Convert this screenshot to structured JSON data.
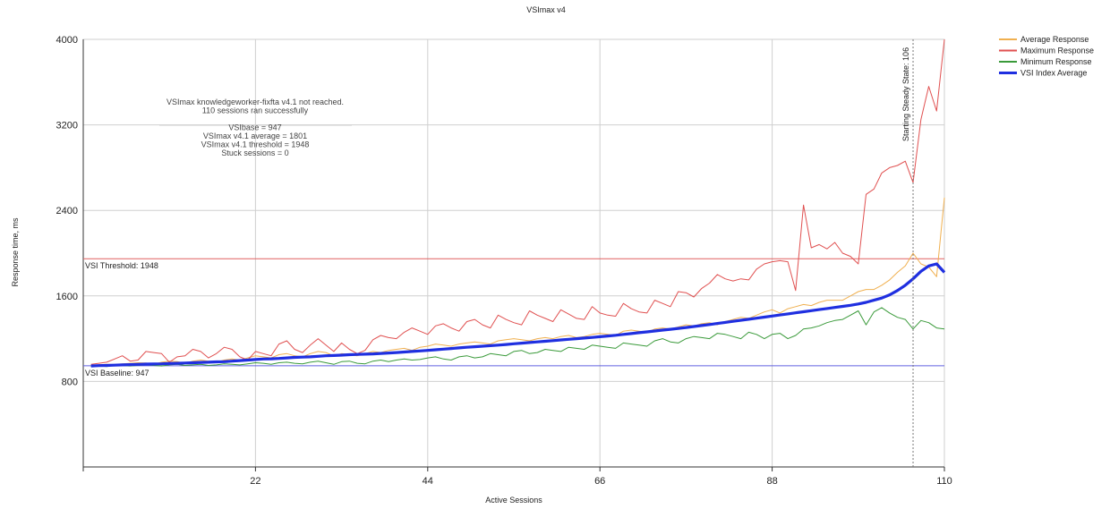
{
  "chart_data": {
    "type": "line",
    "title": "VSImax v4",
    "xlabel": "Active Sessions",
    "ylabel": "Response time, ms",
    "xlim": [
      0,
      110
    ],
    "ylim": [
      0,
      4000
    ],
    "x_ticks": [
      22,
      44,
      66,
      88,
      110
    ],
    "y_ticks": [
      800,
      1600,
      2400,
      3200,
      4000
    ],
    "grid": true,
    "legend_position": "top-right",
    "colors": {
      "average": "#f0b050",
      "maximum": "#e05050",
      "minimum": "#3a9a3a",
      "vsi_index": "#1f2fe0",
      "threshold_line": "#e06060",
      "baseline_line": "#6060e0",
      "grid": "#cfcfcf"
    },
    "x": [
      1,
      2,
      3,
      4,
      5,
      6,
      7,
      8,
      9,
      10,
      11,
      12,
      13,
      14,
      15,
      16,
      17,
      18,
      19,
      20,
      21,
      22,
      23,
      24,
      25,
      26,
      27,
      28,
      29,
      30,
      31,
      32,
      33,
      34,
      35,
      36,
      37,
      38,
      39,
      40,
      41,
      42,
      43,
      44,
      45,
      46,
      47,
      48,
      49,
      50,
      51,
      52,
      53,
      54,
      55,
      56,
      57,
      58,
      59,
      60,
      61,
      62,
      63,
      64,
      65,
      66,
      67,
      68,
      69,
      70,
      71,
      72,
      73,
      74,
      75,
      76,
      77,
      78,
      79,
      80,
      81,
      82,
      83,
      84,
      85,
      86,
      87,
      88,
      89,
      90,
      91,
      92,
      93,
      94,
      95,
      96,
      97,
      98,
      99,
      100,
      101,
      102,
      103,
      104,
      105,
      106,
      107,
      108,
      109,
      110
    ],
    "series": [
      {
        "name": "Average Response",
        "color": "#f0b050",
        "width": 1,
        "values": [
          950,
          955,
          960,
          958,
          965,
          970,
          975,
          972,
          960,
          980,
          990,
          985,
          970,
          990,
          1000,
          990,
          980,
          1000,
          1010,
          1000,
          1020,
          1040,
          1030,
          1020,
          1050,
          1060,
          1040,
          1030,
          1060,
          1080,
          1070,
          1040,
          1060,
          1050,
          1040,
          1060,
          1080,
          1070,
          1090,
          1100,
          1110,
          1090,
          1120,
          1130,
          1150,
          1140,
          1130,
          1150,
          1160,
          1170,
          1160,
          1150,
          1180,
          1190,
          1200,
          1190,
          1180,
          1200,
          1210,
          1200,
          1220,
          1230,
          1210,
          1220,
          1240,
          1250,
          1240,
          1230,
          1270,
          1280,
          1270,
          1260,
          1290,
          1300,
          1290,
          1310,
          1330,
          1320,
          1340,
          1350,
          1330,
          1360,
          1380,
          1400,
          1390,
          1420,
          1450,
          1470,
          1440,
          1480,
          1500,
          1520,
          1510,
          1540,
          1560,
          1560,
          1560,
          1600,
          1640,
          1660,
          1660,
          1700,
          1750,
          1820,
          1880,
          2000,
          1900,
          1870,
          1780,
          2520
        ]
      },
      {
        "name": "Maximum Response",
        "color": "#e05050",
        "width": 1,
        "values": [
          960,
          970,
          980,
          1010,
          1040,
          990,
          1000,
          1080,
          1070,
          1060,
          980,
          1030,
          1040,
          1100,
          1080,
          1020,
          1060,
          1120,
          1100,
          1030,
          1000,
          1080,
          1060,
          1040,
          1150,
          1180,
          1100,
          1070,
          1140,
          1200,
          1140,
          1080,
          1160,
          1100,
          1060,
          1090,
          1190,
          1230,
          1210,
          1200,
          1260,
          1300,
          1270,
          1240,
          1320,
          1340,
          1300,
          1270,
          1360,
          1380,
          1330,
          1300,
          1420,
          1380,
          1350,
          1330,
          1460,
          1420,
          1390,
          1360,
          1470,
          1430,
          1390,
          1380,
          1500,
          1440,
          1420,
          1410,
          1530,
          1480,
          1450,
          1440,
          1560,
          1530,
          1500,
          1640,
          1630,
          1590,
          1670,
          1720,
          1800,
          1760,
          1740,
          1760,
          1750,
          1850,
          1900,
          1920,
          1930,
          1920,
          1650,
          2450,
          2050,
          2080,
          2040,
          2100,
          2000,
          1970,
          1900,
          2550,
          2600,
          2750,
          2800,
          2820,
          2860,
          2660,
          3250,
          3560,
          3330,
          4000
        ]
      },
      {
        "name": "Minimum Response",
        "color": "#3a9a3a",
        "width": 1,
        "values": [
          940,
          945,
          940,
          950,
          948,
          945,
          950,
          955,
          950,
          945,
          955,
          960,
          950,
          955,
          960,
          950,
          955,
          965,
          960,
          955,
          965,
          975,
          970,
          960,
          975,
          980,
          970,
          965,
          980,
          990,
          975,
          960,
          985,
          990,
          970,
          965,
          990,
          1000,
          985,
          1000,
          1010,
          1000,
          1005,
          1020,
          1030,
          1010,
          1000,
          1030,
          1040,
          1020,
          1030,
          1060,
          1050,
          1040,
          1080,
          1090,
          1060,
          1070,
          1100,
          1090,
          1080,
          1120,
          1110,
          1100,
          1140,
          1130,
          1120,
          1110,
          1160,
          1150,
          1140,
          1130,
          1180,
          1200,
          1170,
          1160,
          1200,
          1220,
          1210,
          1200,
          1250,
          1240,
          1220,
          1200,
          1260,
          1240,
          1200,
          1240,
          1250,
          1200,
          1230,
          1290,
          1300,
          1320,
          1350,
          1370,
          1380,
          1420,
          1460,
          1330,
          1450,
          1490,
          1440,
          1400,
          1380,
          1290,
          1370,
          1350,
          1300,
          1290
        ]
      },
      {
        "name": "VSI Index Average",
        "color": "#1f2fe0",
        "width": 3.2,
        "values": [
          945,
          948,
          950,
          952,
          955,
          957,
          960,
          962,
          963,
          965,
          968,
          970,
          972,
          975,
          978,
          980,
          983,
          985,
          990,
          995,
          1000,
          1005,
          1010,
          1012,
          1015,
          1020,
          1025,
          1028,
          1030,
          1035,
          1040,
          1043,
          1046,
          1050,
          1053,
          1055,
          1058,
          1062,
          1066,
          1070,
          1075,
          1080,
          1085,
          1090,
          1096,
          1102,
          1108,
          1114,
          1120,
          1125,
          1130,
          1135,
          1140,
          1146,
          1152,
          1158,
          1164,
          1170,
          1176,
          1182,
          1188,
          1194,
          1200,
          1206,
          1212,
          1218,
          1225,
          1232,
          1240,
          1248,
          1256,
          1264,
          1272,
          1280,
          1288,
          1296,
          1305,
          1314,
          1323,
          1332,
          1342,
          1352,
          1362,
          1372,
          1382,
          1392,
          1402,
          1412,
          1422,
          1432,
          1442,
          1452,
          1462,
          1472,
          1482,
          1492,
          1502,
          1512,
          1525,
          1540,
          1560,
          1580,
          1610,
          1650,
          1700,
          1760,
          1830,
          1880,
          1900,
          1820
        ]
      }
    ],
    "reference_lines": [
      {
        "name": "threshold",
        "label": "VSI Threshold: 1948",
        "value": 1948,
        "color": "#e06060"
      },
      {
        "name": "baseline",
        "label": "VSI Baseline: 947",
        "value": 947,
        "color": "#6060e0"
      }
    ],
    "vertical_marker": {
      "label": "Starting Steady State: 106",
      "x": 106
    },
    "annotation_lines": [
      "VSImax knowledgeworker-fixfta v4.1 not reached.",
      "110 sessions ran successfully",
      "",
      "VSIbase = 947",
      "VSImax v4.1 average = 1801",
      "VSImax v4.1 threshold = 1948",
      "Stuck sessions = 0"
    ]
  }
}
